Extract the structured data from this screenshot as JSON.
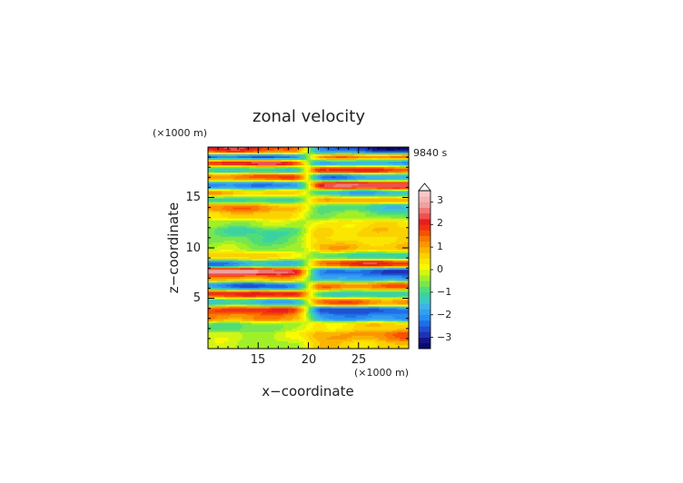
{
  "chart_data": {
    "type": "heatmap",
    "title": "zonal velocity",
    "xlabel": "x−coordinate",
    "ylabel": "z−coordinate",
    "x_unit": "(×1000 m)",
    "y_unit": "(×1000 m)",
    "time_label": "9840 s",
    "xlim": [
      10,
      30
    ],
    "ylim": [
      0,
      20
    ],
    "x_ticks": [
      "15",
      "20",
      "25"
    ],
    "x_tick_values": [
      15,
      20,
      25
    ],
    "y_ticks": [
      "5",
      "10",
      "15"
    ],
    "y_tick_values": [
      5,
      10,
      15
    ],
    "colorbar": {
      "levels": [
        -3.5,
        -3.25,
        -3,
        -2.75,
        -2.5,
        -2.25,
        -2,
        -1.75,
        -1.5,
        -1.25,
        -1,
        -0.75,
        -0.5,
        -0.25,
        0,
        0.25,
        0.5,
        0.75,
        1,
        1.25,
        1.5,
        1.75,
        2,
        2.25,
        2.5,
        2.75,
        3,
        3.25,
        3.5
      ],
      "tick_labels": [
        "3",
        "2",
        "1",
        "0",
        "−1",
        "−2",
        "−3"
      ],
      "tick_values": [
        3,
        2,
        1,
        0,
        -1,
        -2,
        -3
      ],
      "colors": [
        "#0a0a6e",
        "#14148c",
        "#1e32b4",
        "#1e50d2",
        "#1e6ee6",
        "#288cf0",
        "#32a0f0",
        "#3cb4e6",
        "#3cc8c8",
        "#3cd2a0",
        "#50dc78",
        "#78e650",
        "#a0f028",
        "#d2f514",
        "#fafa00",
        "#fae600",
        "#fad200",
        "#fab400",
        "#fa9600",
        "#fa7800",
        "#fa5000",
        "#f03214",
        "#e61e1e",
        "#f05050",
        "#f07878",
        "#f0a0a0",
        "#f5b4b4",
        "#fac8c8"
      ]
    },
    "bands": [
      {
        "z": 0.4,
        "left": -0.3,
        "right": 0.8
      },
      {
        "z": 1.2,
        "left": -0.2,
        "right": 1.4
      },
      {
        "z": 2.2,
        "left": -0.8,
        "right": 0.6
      },
      {
        "z": 3.2,
        "left": 1.6,
        "right": -2.2
      },
      {
        "z": 3.8,
        "left": 2.6,
        "right": -3.0
      },
      {
        "z": 4.6,
        "left": -2.0,
        "right": 1.8
      },
      {
        "z": 5.4,
        "left": 2.4,
        "right": -1.6
      },
      {
        "z": 6.2,
        "left": -2.6,
        "right": 2.0
      },
      {
        "z": 7.0,
        "left": 1.0,
        "right": -2.4
      },
      {
        "z": 7.6,
        "left": 3.4,
        "right": -3.2
      },
      {
        "z": 8.4,
        "left": -2.4,
        "right": 2.2
      },
      {
        "z": 9.2,
        "left": 0.8,
        "right": -1.2
      },
      {
        "z": 10.0,
        "left": -0.6,
        "right": 0.9
      },
      {
        "z": 10.8,
        "left": -0.9,
        "right": 0.6
      },
      {
        "z": 11.6,
        "left": -1.1,
        "right": 0.8
      },
      {
        "z": 12.4,
        "left": -0.4,
        "right": 0.5
      },
      {
        "z": 13.2,
        "left": 0.6,
        "right": -0.8
      },
      {
        "z": 14.0,
        "left": 1.4,
        "right": -1.4
      },
      {
        "z": 14.8,
        "left": -1.6,
        "right": 1.3
      },
      {
        "z": 15.4,
        "left": 1.2,
        "right": -2.0
      },
      {
        "z": 16.2,
        "left": -3.0,
        "right": 2.8
      },
      {
        "z": 17.0,
        "left": 2.0,
        "right": -2.4
      },
      {
        "z": 17.8,
        "left": -1.8,
        "right": 3.0
      },
      {
        "z": 18.4,
        "left": 3.2,
        "right": -3.4
      },
      {
        "z": 19.0,
        "left": -3.4,
        "right": 2.6
      },
      {
        "z": 19.6,
        "left": 2.2,
        "right": -3.6
      }
    ]
  }
}
